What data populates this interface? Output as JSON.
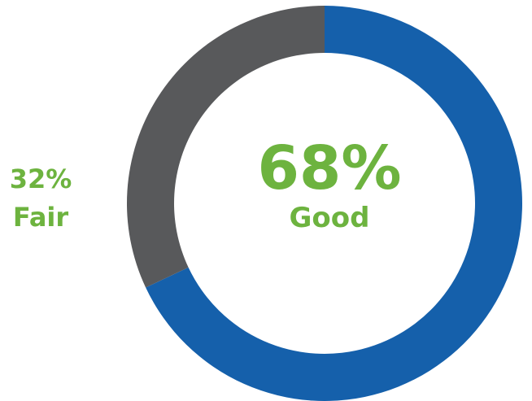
{
  "chart_data": {
    "type": "pie",
    "variant": "donut",
    "slices": [
      {
        "label": "Good",
        "value": 68,
        "display_value": "68%",
        "color": "#1560ab"
      },
      {
        "label": "Fair",
        "value": 32,
        "display_value": "32%",
        "color": "#58595b"
      }
    ],
    "start_angle_deg": 0,
    "direction": "clockwise",
    "label_color": "#6db33f",
    "legend": "none"
  }
}
